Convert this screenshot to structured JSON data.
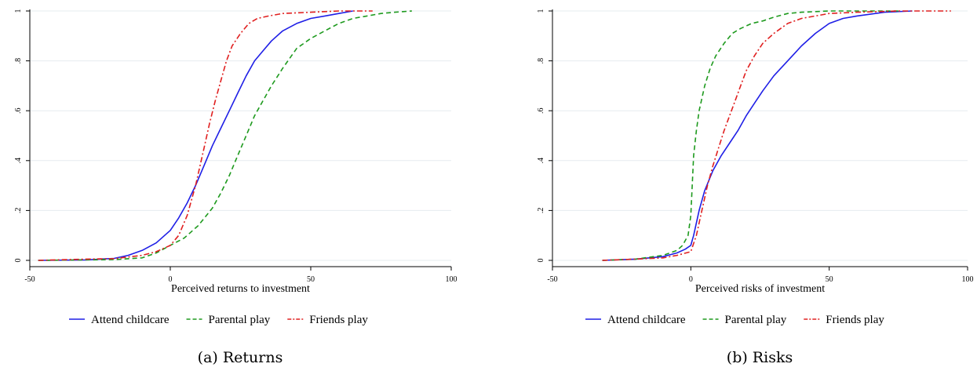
{
  "chart_data": [
    {
      "type": "line",
      "caption": "(a) Returns",
      "xlabel": "Perceived returns to investment",
      "ylabel": "",
      "xlim": [
        -50,
        100
      ],
      "ylim": [
        0,
        1
      ],
      "xticks": [
        -50,
        0,
        50,
        100
      ],
      "xtick_labels": [
        "-50",
        "0",
        "50",
        "100"
      ],
      "yticks": [
        0,
        0.2,
        0.4,
        0.6,
        0.8,
        1
      ],
      "ytick_labels": [
        "0",
        ".2",
        ".4",
        ".6",
        ".8",
        "1"
      ],
      "grid": true,
      "legend_position": "bottom",
      "series": [
        {
          "name": "Attend childcare",
          "color": "#1f1fe6",
          "dash": "solid",
          "x": [
            -47,
            -30,
            -20,
            -15,
            -10,
            -5,
            0,
            3,
            6,
            9,
            12,
            15,
            18,
            21,
            24,
            27,
            30,
            33,
            36,
            40,
            45,
            50,
            55,
            60,
            65
          ],
          "y": [
            0,
            0.002,
            0.008,
            0.02,
            0.04,
            0.07,
            0.12,
            0.17,
            0.23,
            0.3,
            0.38,
            0.46,
            0.53,
            0.6,
            0.67,
            0.74,
            0.8,
            0.84,
            0.88,
            0.92,
            0.95,
            0.97,
            0.98,
            0.99,
            1
          ]
        },
        {
          "name": "Parental play",
          "color": "#1e9a1e",
          "dash": "dash",
          "x": [
            -47,
            -20,
            -10,
            -5,
            0,
            5,
            10,
            15,
            18,
            21,
            24,
            27,
            30,
            33,
            36,
            40,
            45,
            50,
            55,
            60,
            65,
            70,
            75,
            80,
            86
          ],
          "y": [
            0,
            0.003,
            0.01,
            0.03,
            0.06,
            0.09,
            0.14,
            0.21,
            0.27,
            0.34,
            0.42,
            0.5,
            0.58,
            0.64,
            0.7,
            0.77,
            0.85,
            0.89,
            0.92,
            0.95,
            0.97,
            0.98,
            0.99,
            0.995,
            1
          ]
        },
        {
          "name": "Friends play",
          "color": "#e02020",
          "dash": "dashdot",
          "x": [
            -47,
            -30,
            -20,
            -10,
            -5,
            0,
            3,
            6,
            9,
            12,
            14,
            16,
            18,
            20,
            22,
            25,
            28,
            31,
            35,
            40,
            50,
            60,
            72
          ],
          "y": [
            0,
            0.005,
            0.007,
            0.02,
            0.035,
            0.06,
            0.1,
            0.18,
            0.3,
            0.45,
            0.55,
            0.64,
            0.72,
            0.8,
            0.86,
            0.91,
            0.95,
            0.97,
            0.98,
            0.99,
            0.995,
            1,
            1
          ]
        }
      ]
    },
    {
      "type": "line",
      "caption": "(b) Risks",
      "xlabel": "Perceived risks of investment",
      "ylabel": "",
      "xlim": [
        -50,
        100
      ],
      "ylim": [
        0,
        1
      ],
      "xticks": [
        -50,
        0,
        50,
        100
      ],
      "xtick_labels": [
        "-50",
        "0",
        "50",
        "100"
      ],
      "yticks": [
        0,
        0.2,
        0.4,
        0.6,
        0.8,
        1
      ],
      "ytick_labels": [
        "0",
        ".2",
        ".4",
        ".6",
        ".8",
        "1"
      ],
      "grid": true,
      "legend_position": "bottom",
      "series": [
        {
          "name": "Attend childcare",
          "color": "#1f1fe6",
          "dash": "solid",
          "x": [
            -32,
            -20,
            -10,
            -5,
            -2,
            0,
            1,
            3,
            5,
            8,
            11,
            14,
            17,
            20,
            23,
            26,
            30,
            35,
            40,
            45,
            50,
            55,
            60,
            70,
            80
          ],
          "y": [
            0,
            0.005,
            0.015,
            0.03,
            0.045,
            0.06,
            0.1,
            0.2,
            0.28,
            0.36,
            0.42,
            0.47,
            0.52,
            0.58,
            0.63,
            0.68,
            0.74,
            0.8,
            0.86,
            0.91,
            0.95,
            0.97,
            0.98,
            0.995,
            1
          ]
        },
        {
          "name": "Parental play",
          "color": "#1e9a1e",
          "dash": "dash",
          "x": [
            -32,
            -20,
            -10,
            -5,
            -3,
            -1,
            0,
            0.5,
            1,
            2,
            3,
            5,
            7,
            9,
            12,
            15,
            18,
            22,
            26,
            30,
            35,
            40,
            50,
            60,
            75
          ],
          "y": [
            0,
            0.005,
            0.02,
            0.04,
            0.06,
            0.1,
            0.18,
            0.3,
            0.42,
            0.52,
            0.6,
            0.7,
            0.77,
            0.82,
            0.87,
            0.91,
            0.93,
            0.95,
            0.96,
            0.975,
            0.99,
            0.995,
            1,
            1,
            1
          ]
        },
        {
          "name": "Friends play",
          "color": "#e02020",
          "dash": "dashdot",
          "x": [
            -32,
            -20,
            -10,
            -5,
            0,
            2,
            4,
            6,
            8,
            10,
            12,
            14,
            16,
            18,
            20,
            23,
            26,
            30,
            35,
            40,
            50,
            60,
            75,
            94
          ],
          "y": [
            0,
            0.005,
            0.01,
            0.02,
            0.035,
            0.1,
            0.2,
            0.3,
            0.38,
            0.45,
            0.52,
            0.58,
            0.64,
            0.7,
            0.76,
            0.82,
            0.87,
            0.91,
            0.95,
            0.97,
            0.99,
            0.995,
            1,
            1
          ]
        }
      ]
    }
  ]
}
